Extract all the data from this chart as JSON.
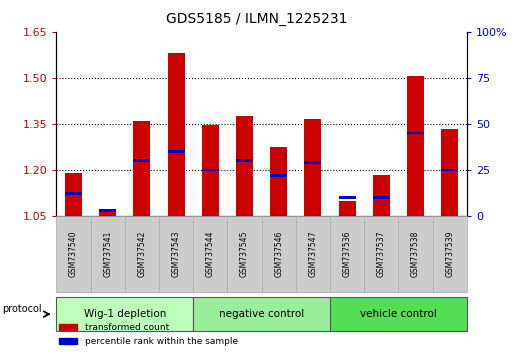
{
  "title": "GDS5185 / ILMN_1225231",
  "samples": [
    "GSM737540",
    "GSM737541",
    "GSM737542",
    "GSM737543",
    "GSM737544",
    "GSM737545",
    "GSM737546",
    "GSM737547",
    "GSM737536",
    "GSM737537",
    "GSM737538",
    "GSM737539"
  ],
  "transformed_counts": [
    1.19,
    1.07,
    1.36,
    1.58,
    1.345,
    1.375,
    1.275,
    1.365,
    1.1,
    1.185,
    1.505,
    1.335
  ],
  "percentile_ranks": [
    12,
    3,
    30,
    35,
    25,
    30,
    22,
    29,
    10,
    10,
    45,
    25
  ],
  "ylim_left": [
    1.05,
    1.65
  ],
  "ylim_right": [
    0,
    100
  ],
  "yticks_left": [
    1.05,
    1.2,
    1.35,
    1.5,
    1.65
  ],
  "yticks_right": [
    0,
    25,
    50,
    75,
    100
  ],
  "ytick_labels_left": [
    "1.05",
    "1.20",
    "1.35",
    "1.50",
    "1.65"
  ],
  "ytick_labels_right": [
    "0",
    "25",
    "50",
    "75",
    "100%"
  ],
  "groups": [
    {
      "label": "Wig-1 depletion",
      "count": 4,
      "color": "#bbffbb"
    },
    {
      "label": "negative control",
      "count": 4,
      "color": "#99ee99"
    },
    {
      "label": "vehicle control",
      "count": 4,
      "color": "#55dd55"
    }
  ],
  "bar_color": "#cc0000",
  "percentile_color": "#0000cc",
  "bar_width": 0.5,
  "tick_label_color_left": "#cc0000",
  "tick_label_color_right": "#0000cc",
  "background_xlabel": "#cccccc",
  "xlabel_border_color": "#aaaaaa"
}
